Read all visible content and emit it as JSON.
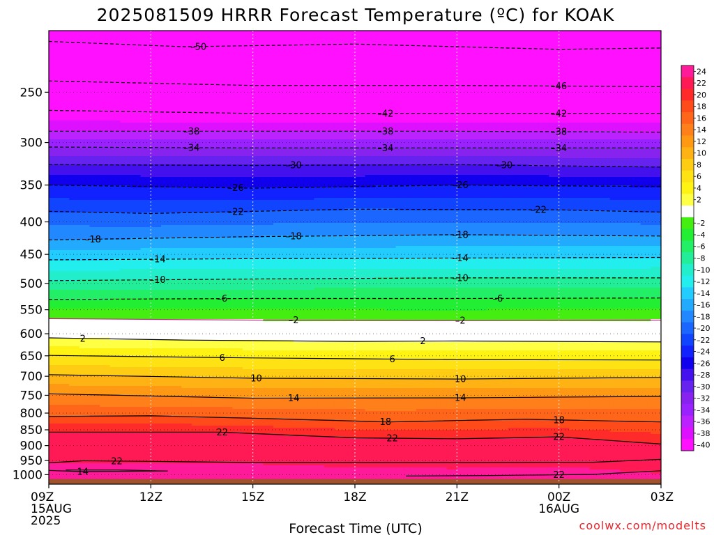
{
  "chart_data": {
    "type": "heatmap",
    "title": "2025081509 HRRR Forecast Temperature (ºC) for KOAK",
    "xlabel": "Forecast Time (UTC)",
    "ylabel": "",
    "credit": "coolwx.com/modelts",
    "x_ticks": [
      {
        "hour": 0,
        "lines": [
          "09Z",
          "15AUG",
          "2025"
        ]
      },
      {
        "hour": 3,
        "lines": [
          "12Z"
        ]
      },
      {
        "hour": 6,
        "lines": [
          "15Z"
        ]
      },
      {
        "hour": 9,
        "lines": [
          "18Z"
        ]
      },
      {
        "hour": 12,
        "lines": [
          "21Z"
        ]
      },
      {
        "hour": 15,
        "lines": [
          "00Z",
          "16AUG"
        ]
      },
      {
        "hour": 18,
        "lines": [
          "03Z"
        ]
      }
    ],
    "xlim": [
      0,
      18
    ],
    "y_scale": "log-pressure",
    "ylim_hPa": [
      1035,
      200
    ],
    "y_ticks": [
      250,
      300,
      350,
      400,
      450,
      500,
      550,
      600,
      650,
      700,
      750,
      800,
      850,
      900,
      950,
      1000
    ],
    "colorbar": {
      "labels": [
        "24",
        "22",
        "20",
        "18",
        "16",
        "14",
        "12",
        "10",
        "8",
        "6",
        "4",
        "2",
        "",
        "-2",
        "-4",
        "-6",
        "-8",
        "-10",
        "-12",
        "-14",
        "-16",
        "-18",
        "-20",
        "-22",
        "-24",
        "-26",
        "-28",
        "-30",
        "-32",
        "-34",
        "-36",
        "-38",
        "-40"
      ],
      "colors": [
        "#ff1a9a",
        "#ff1a55",
        "#ff2a2a",
        "#ff4a1a",
        "#ff661a",
        "#ff7f1a",
        "#ff9914",
        "#ffb214",
        "#ffcc14",
        "#ffe214",
        "#fff314",
        "#ffff44",
        "#ffffff",
        "#44ee11",
        "#22ee33",
        "#22ee66",
        "#22ee99",
        "#22eecc",
        "#22eeee",
        "#22ccff",
        "#22aaff",
        "#2288ff",
        "#1a66ff",
        "#1144ff",
        "#1122ff",
        "#1100ee",
        "#4411ee",
        "#6622ee",
        "#8822ee",
        "#9922ff",
        "#bb22ff",
        "#dd11ff",
        "#ff11ff"
      ]
    },
    "isotherms": [
      {
        "temp": -50,
        "label_pos": [
          [
            4.4
          ]
        ],
        "points": [
          [
            0,
            208
          ],
          [
            4,
            212
          ],
          [
            9,
            210
          ],
          [
            15,
            214
          ],
          [
            18,
            213
          ]
        ]
      },
      {
        "temp": -46,
        "label_pos": [
          [
            15
          ]
        ],
        "points": [
          [
            0,
            240
          ],
          [
            6,
            244
          ],
          [
            12,
            244
          ],
          [
            18,
            245
          ]
        ]
      },
      {
        "temp": -42,
        "label_pos": [
          [
            9.9
          ],
          [
            15
          ]
        ],
        "points": [
          [
            0,
            267
          ],
          [
            6,
            270
          ],
          [
            12,
            270
          ],
          [
            18,
            270
          ]
        ]
      },
      {
        "temp": -38,
        "label_pos": [
          [
            4.2
          ],
          [
            9.9
          ],
          [
            15
          ]
        ],
        "points": [
          [
            0,
            288
          ],
          [
            6,
            288
          ],
          [
            12,
            288
          ],
          [
            18,
            289
          ]
        ]
      },
      {
        "temp": -34,
        "label_pos": [
          [
            4.2
          ],
          [
            9.9
          ],
          [
            15
          ]
        ],
        "points": [
          [
            0,
            305
          ],
          [
            6,
            306
          ],
          [
            12,
            306
          ],
          [
            18,
            306
          ]
        ]
      },
      {
        "temp": -30,
        "label_pos": [
          [
            7.2
          ],
          [
            13.4
          ]
        ],
        "points": [
          [
            0,
            325
          ],
          [
            6,
            326
          ],
          [
            12,
            325
          ],
          [
            18,
            328
          ]
        ]
      },
      {
        "temp": -26,
        "label_pos": [
          [
            5.5
          ],
          [
            12.1
          ]
        ],
        "points": [
          [
            0,
            350
          ],
          [
            6,
            354
          ],
          [
            12,
            350
          ],
          [
            18,
            352
          ]
        ]
      },
      {
        "temp": -22,
        "label_pos": [
          [
            5.5
          ],
          [
            14.4
          ]
        ],
        "points": [
          [
            0,
            385
          ],
          [
            3,
            388
          ],
          [
            9,
            382
          ],
          [
            15,
            383
          ],
          [
            18,
            386
          ]
        ]
      },
      {
        "temp": -18,
        "label_pos": [
          [
            1.3
          ],
          [
            7.2
          ],
          [
            12.1
          ]
        ],
        "points": [
          [
            0,
            427
          ],
          [
            6,
            422
          ],
          [
            12,
            419
          ],
          [
            18,
            421
          ]
        ]
      },
      {
        "temp": -14,
        "label_pos": [
          [
            3.2
          ],
          [
            12.1
          ]
        ],
        "points": [
          [
            0,
            459
          ],
          [
            6,
            457
          ],
          [
            12,
            456
          ],
          [
            18,
            455
          ]
        ]
      },
      {
        "temp": -10,
        "label_pos": [
          [
            3.2
          ],
          [
            12.1
          ]
        ],
        "points": [
          [
            0,
            495
          ],
          [
            6,
            492
          ],
          [
            12,
            490
          ],
          [
            18,
            490
          ]
        ]
      },
      {
        "temp": -6,
        "label_pos": [
          [
            5.1
          ],
          [
            13.2
          ]
        ],
        "points": [
          [
            0,
            530
          ],
          [
            6,
            528
          ],
          [
            12,
            528
          ],
          [
            18,
            527
          ]
        ]
      },
      {
        "temp": -2,
        "label_pos": [
          [
            7.2
          ],
          [
            12.1
          ]
        ],
        "points": [
          [
            0,
            568
          ],
          [
            6,
            571
          ],
          [
            12,
            572
          ],
          [
            18,
            571
          ]
        ]
      },
      {
        "temp": 2,
        "label_pos": [
          [
            1
          ],
          [
            11
          ]
        ],
        "points": [
          [
            0,
            609
          ],
          [
            4,
            614
          ],
          [
            9,
            617
          ],
          [
            12,
            616
          ],
          [
            18,
            618
          ]
        ]
      },
      {
        "temp": 6,
        "label_pos": [
          [
            5.1
          ],
          [
            10.1
          ]
        ],
        "points": [
          [
            0,
            649
          ],
          [
            6,
            655
          ],
          [
            12,
            659
          ],
          [
            18,
            660
          ]
        ]
      },
      {
        "temp": 10,
        "label_pos": [
          [
            6.1
          ],
          [
            12.1
          ]
        ],
        "points": [
          [
            0,
            696
          ],
          [
            6,
            705
          ],
          [
            12,
            707
          ],
          [
            18,
            703
          ]
        ]
      },
      {
        "temp": 14,
        "label_pos": [
          [
            7.2
          ],
          [
            12.1
          ]
        ],
        "points": [
          [
            0,
            746
          ],
          [
            6,
            758
          ],
          [
            12,
            757
          ],
          [
            18,
            753
          ]
        ]
      },
      {
        "temp": 18,
        "label_pos": [
          [
            9.9
          ],
          [
            15
          ]
        ],
        "points": [
          [
            0,
            810
          ],
          [
            3,
            808
          ],
          [
            6,
            815
          ],
          [
            10,
            826
          ],
          [
            14,
            818
          ],
          [
            18,
            826
          ]
        ]
      },
      {
        "temp": 22,
        "label_pos": [
          [
            5.1
          ],
          [
            10.1
          ],
          [
            15
          ]
        ],
        "points": [
          [
            0,
            857
          ],
          [
            5,
            857
          ],
          [
            9,
            875
          ],
          [
            12,
            878
          ],
          [
            15,
            872
          ],
          [
            18,
            895
          ]
        ]
      },
      {
        "temp": 22,
        "label_pos": [
          [
            2
          ]
        ],
        "points": [
          [
            0,
            958
          ],
          [
            1,
            951
          ],
          [
            3,
            953
          ],
          [
            6,
            957
          ],
          [
            12,
            957
          ],
          [
            16,
            956
          ],
          [
            18,
            946
          ]
        ]
      },
      {
        "temp": 22,
        "label_pos": [
          [
            15
          ]
        ],
        "points": [
          [
            10.5,
            1005
          ],
          [
            13,
            1003
          ],
          [
            16,
            999
          ],
          [
            18,
            986
          ]
        ]
      },
      {
        "temp": 14,
        "label_pos": [
          [
            1
          ]
        ],
        "points": [
          [
            0,
            985
          ],
          [
            1,
            989
          ],
          [
            3.5,
            987
          ],
          [
            2,
            983
          ],
          [
            0.5,
            983
          ]
        ]
      }
    ]
  }
}
